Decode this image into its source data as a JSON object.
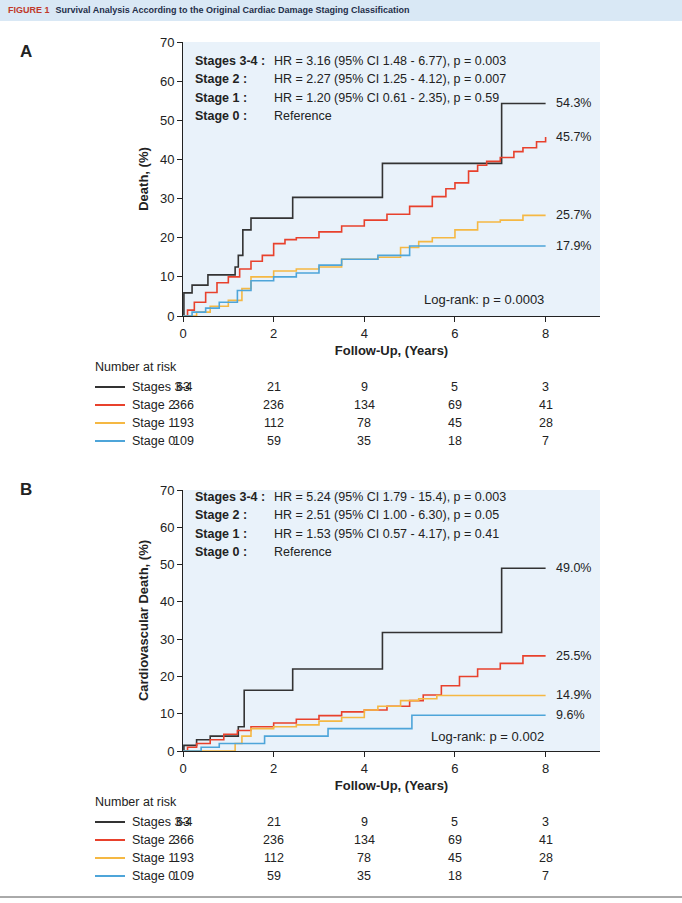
{
  "figure": {
    "label": "FIGURE 1",
    "title": "Survival Analysis According to the Original Cardiac Damage Staging Classification"
  },
  "chart_data": [
    {
      "type": "line",
      "title": "A",
      "x_label": "Follow-Up, (Years)",
      "y_label": "Death, (%)",
      "xlim": [
        0,
        9.2
      ],
      "xticks": [
        0,
        2,
        4,
        6,
        8
      ],
      "ylim": [
        0,
        70
      ],
      "yticks": [
        0,
        10,
        20,
        30,
        40,
        50,
        60,
        70
      ],
      "grid": false,
      "line_style": "step",
      "annotation": "Log-rank: p = 0.0003",
      "risk_table": {
        "title": "Number at risk",
        "times": [
          0,
          2,
          4,
          6,
          8
        ]
      },
      "series": [
        {
          "name": "Stages 3-4",
          "color": "#333333",
          "hr_label": "Stages 3-4 :",
          "hr": "HR = 3.16 (95% CI 1.48 - 6.77), p = 0.003",
          "x": [
            0,
            0.02,
            0.2,
            0.55,
            1.15,
            1.22,
            1.32,
            1.5,
            2.42,
            4.4,
            7.03,
            8
          ],
          "values": [
            0,
            5.9,
            7.9,
            10.5,
            12.5,
            15.5,
            22,
            25,
            30.3,
            39,
            54.3,
            54.3
          ],
          "end_value": 54.3,
          "end_label": "54.3%",
          "at_risk": [
            63,
            21,
            9,
            5,
            3
          ]
        },
        {
          "name": "Stage 2",
          "color": "#e8412c",
          "hr_label": "Stage 2 :",
          "hr": "HR = 2.27 (95% CI 1.25 - 4.12), p = 0.007",
          "x": [
            0,
            0.1,
            0.25,
            0.5,
            0.75,
            1,
            1.25,
            1.5,
            1.75,
            2,
            2.25,
            2.5,
            3,
            3.5,
            4,
            4.5,
            5,
            5.5,
            5.8,
            6,
            6.3,
            6.5,
            6.7,
            7,
            7.3,
            7.5,
            7.8,
            8
          ],
          "values": [
            0,
            1.5,
            3.5,
            6,
            8.5,
            10,
            12,
            14,
            15.5,
            18.5,
            19.5,
            20,
            21.5,
            23,
            24.5,
            26,
            28,
            30.5,
            32.5,
            34,
            37,
            38.5,
            39.5,
            40.5,
            42,
            43,
            44.5,
            45.7
          ],
          "end_value": 45.7,
          "end_label": "45.7%",
          "at_risk": [
            366,
            236,
            134,
            69,
            41
          ]
        },
        {
          "name": "Stage 1",
          "color": "#f5b843",
          "hr_label": "Stage 1 :",
          "hr": "HR = 1.20 (95% CI 0.61 - 2.35), p = 0.59",
          "x": [
            0,
            0.3,
            0.6,
            1,
            1.3,
            1.5,
            2,
            2.5,
            3,
            3.5,
            4.3,
            4.8,
            5.2,
            5.5,
            6,
            6.5,
            7,
            7.5,
            8
          ],
          "values": [
            0,
            1,
            2.5,
            4,
            7,
            10,
            11.5,
            12,
            12.5,
            14.5,
            15,
            17.5,
            19,
            20,
            22,
            24,
            24.5,
            25.7,
            25.7
          ],
          "end_value": 25.7,
          "end_label": "25.7%",
          "at_risk": [
            193,
            112,
            78,
            45,
            28
          ]
        },
        {
          "name": "Stage 0",
          "color": "#4ea5d9",
          "hr_label": "Stage 0 :",
          "hr": "Reference",
          "x": [
            0,
            0.2,
            0.5,
            0.8,
            1.2,
            1.5,
            2,
            2.5,
            3,
            3.5,
            4.3,
            5,
            8
          ],
          "values": [
            0,
            1,
            2,
            3.5,
            6.5,
            9,
            10,
            11,
            13,
            14.5,
            15.5,
            17.9,
            17.9
          ],
          "end_value": 17.9,
          "end_label": "17.9%",
          "at_risk": [
            109,
            59,
            35,
            18,
            7
          ]
        }
      ]
    },
    {
      "type": "line",
      "title": "B",
      "x_label": "Follow-Up, (Years)",
      "y_label": "Cardiovascular Death, (%)",
      "xlim": [
        0,
        9.2
      ],
      "xticks": [
        0,
        2,
        4,
        6,
        8
      ],
      "ylim": [
        0,
        70
      ],
      "yticks": [
        0,
        10,
        20,
        30,
        40,
        50,
        60,
        70
      ],
      "grid": false,
      "line_style": "step",
      "annotation": "Log-rank: p = 0.002",
      "risk_table": {
        "title": "Number at risk",
        "times": [
          0,
          2,
          4,
          6,
          8
        ]
      },
      "series": [
        {
          "name": "Stages 3-4",
          "color": "#333333",
          "hr_label": "Stages 3-4 :",
          "hr": "HR = 5.24 (95% CI 1.79 - 15.4), p = 0.003",
          "x": [
            0,
            0.02,
            0.3,
            0.6,
            1.22,
            1.35,
            2.42,
            4.4,
            7.03,
            8
          ],
          "values": [
            0,
            1.5,
            3,
            4,
            6.5,
            16.3,
            22,
            31.8,
            49,
            49
          ],
          "end_value": 49.0,
          "end_label": "49.0%",
          "at_risk": [
            63,
            21,
            9,
            5,
            3
          ]
        },
        {
          "name": "Stage 2",
          "color": "#e8412c",
          "hr_label": "Stage 2 :",
          "hr": "HR = 2.51 (95% CI 1.00 - 6.30), p = 0.05",
          "x": [
            0,
            0.1,
            0.3,
            0.6,
            0.9,
            1.2,
            1.5,
            2,
            2.5,
            3,
            3.5,
            4,
            4.5,
            5,
            5.3,
            5.7,
            6.1,
            6.5,
            7,
            7.5,
            8
          ],
          "values": [
            0,
            1,
            2,
            3,
            4.5,
            5.5,
            6.5,
            7.5,
            8.5,
            9.5,
            10.5,
            11,
            12,
            13.5,
            15,
            17.5,
            20,
            22,
            23.5,
            25.5,
            25.5
          ],
          "end_value": 25.5,
          "end_label": "25.5%",
          "at_risk": [
            366,
            236,
            134,
            69,
            41
          ]
        },
        {
          "name": "Stage 1",
          "color": "#f5b843",
          "hr_label": "Stage 1 :",
          "hr": "HR = 1.53 (95% CI 0.57 - 4.17), p = 0.41",
          "x": [
            0,
            1.1,
            1.15,
            1.3,
            1.5,
            2,
            2.5,
            3,
            3.5,
            4,
            4.3,
            4.8,
            5.2,
            5.6,
            8
          ],
          "values": [
            0,
            0,
            2,
            4,
            6,
            6.5,
            7,
            8,
            9,
            11,
            12,
            13.5,
            14,
            14.9,
            14.9
          ],
          "end_value": 14.9,
          "end_label": "14.9%",
          "at_risk": [
            193,
            112,
            78,
            45,
            28
          ]
        },
        {
          "name": "Stage 0",
          "color": "#4ea5d9",
          "hr_label": "Stage 0 :",
          "hr": "Reference",
          "x": [
            0,
            0.4,
            0.8,
            1.8,
            3.2,
            5.05,
            8
          ],
          "values": [
            0,
            1,
            2,
            4,
            6,
            9.6,
            9.6
          ],
          "end_value": 9.6,
          "end_label": "9.6%",
          "at_risk": [
            109,
            59,
            35,
            18,
            7
          ]
        }
      ]
    }
  ]
}
